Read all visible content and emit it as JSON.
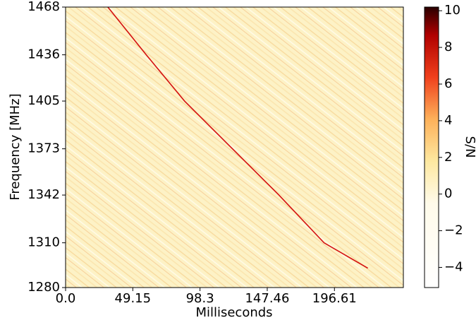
{
  "chart_data": {
    "type": "heatmap",
    "xlabel": "Milliseconds",
    "ylabel": "Frequency [MHz]",
    "colorbar_label": "S/N",
    "xlim": [
      0,
      247
    ],
    "xticks": [
      {
        "value": 0,
        "label": "0.0"
      },
      49.15,
      98.3,
      147.46,
      196.61
    ],
    "ylim": [
      1280,
      1468
    ],
    "yticks": [
      1280,
      1310,
      1342,
      1373,
      1405,
      1436,
      1468
    ],
    "clim": [
      -5.1,
      10.2
    ],
    "cticks": [
      {
        "value": -4,
        "label": "−4"
      },
      {
        "value": -2,
        "label": "−2"
      },
      0,
      2,
      4,
      6,
      8,
      10
    ],
    "pulse": {
      "color": "#d41010",
      "x": [
        30.9,
        59,
        87,
        122,
        156,
        189,
        221
      ],
      "y": [
        1468,
        1436,
        1405,
        1373,
        1342,
        1310,
        1293
      ]
    }
  }
}
